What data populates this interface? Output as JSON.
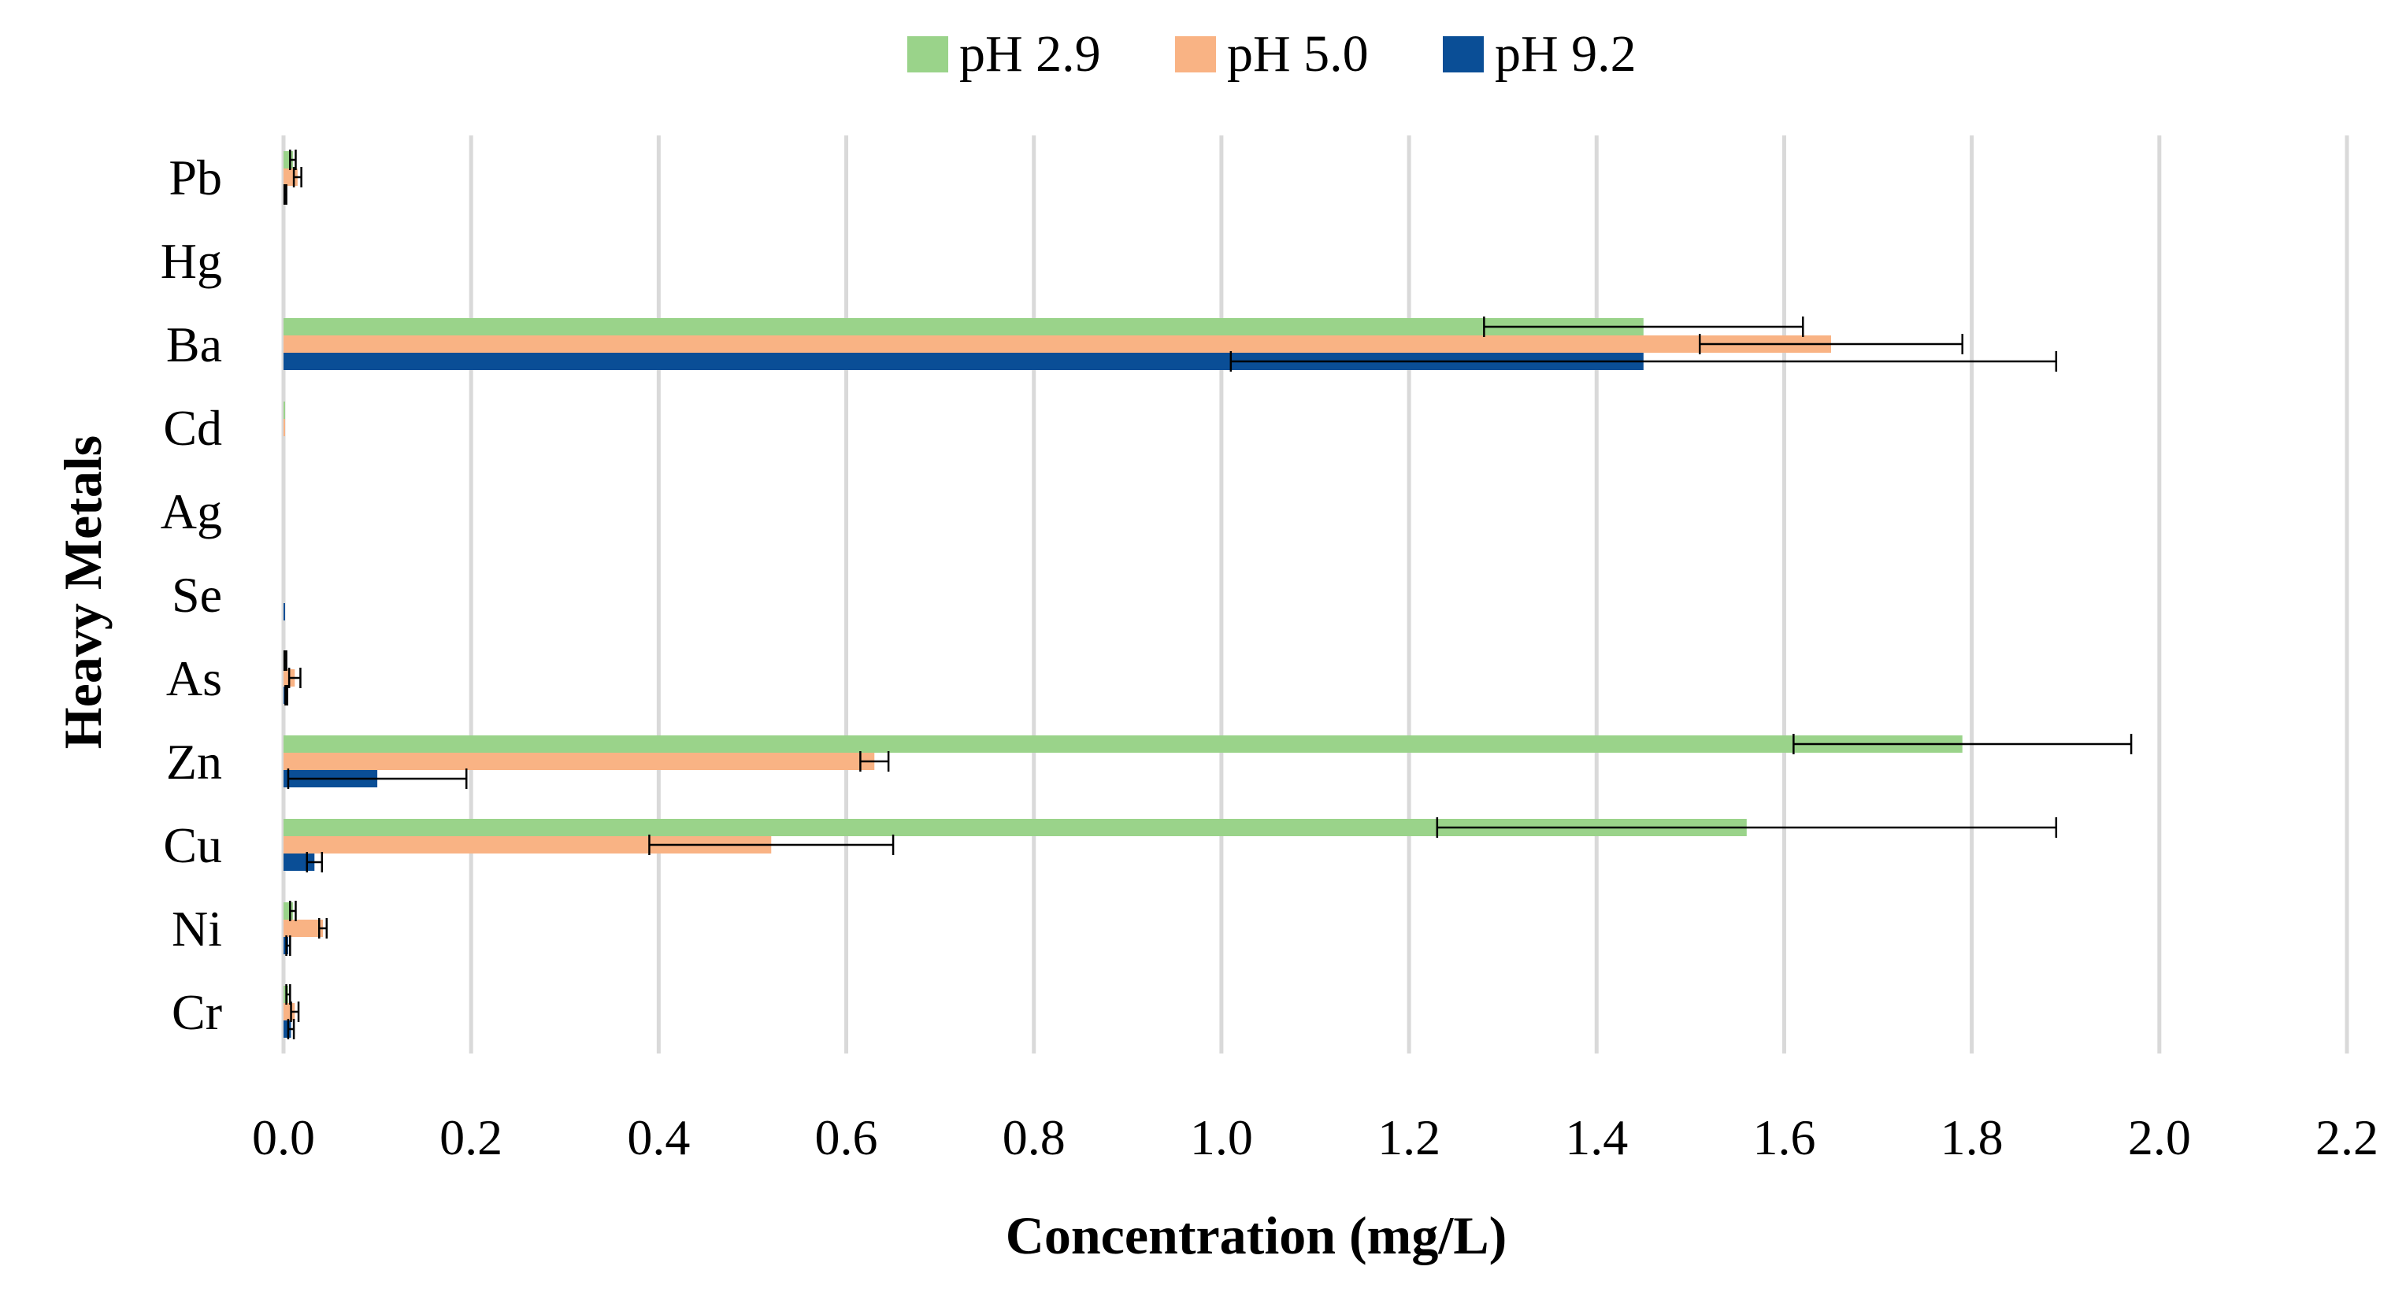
{
  "chart_data": {
    "type": "bar",
    "orientation": "horizontal",
    "xlabel": "Concentration (mg/L)",
    "ylabel": "Heavy Metals",
    "xlim": [
      0,
      2.2
    ],
    "xticks": [
      "0.0",
      "0.2",
      "0.4",
      "0.6",
      "0.8",
      "1.0",
      "1.2",
      "1.4",
      "1.6",
      "1.8",
      "2.0",
      "2.2"
    ],
    "grid": "vertical",
    "legend_position": "top-center",
    "categories": [
      "Pb",
      "Hg",
      "Ba",
      "Cd",
      "Ag",
      "Se",
      "As",
      "Zn",
      "Cu",
      "Ni",
      "Cr"
    ],
    "series": [
      {
        "name": "pH 2.9",
        "color": "#9ad38a",
        "values": [
          0.01,
          0,
          1.45,
          0.001,
          0,
          0,
          0.002,
          1.79,
          1.56,
          0.01,
          0.005
        ],
        "errors": [
          0.003,
          0,
          0.17,
          0,
          0,
          0,
          0.001,
          0.18,
          0.33,
          0.003,
          0.002
        ]
      },
      {
        "name": "pH 5.0",
        "color": "#f9b384",
        "values": [
          0.015,
          0,
          1.65,
          0.001,
          0,
          0,
          0.012,
          0.63,
          0.52,
          0.042,
          0.012
        ],
        "errors": [
          0.004,
          0,
          0.14,
          0,
          0,
          0,
          0.006,
          0.015,
          0.13,
          0.004,
          0.004
        ]
      },
      {
        "name": "pH 9.2",
        "color": "#0a4e96",
        "values": [
          0.002,
          0,
          1.45,
          0,
          0,
          0.001,
          0.003,
          0.1,
          0.033,
          0.005,
          0.008
        ],
        "errors": [
          0.001,
          0,
          0.44,
          0,
          0,
          0,
          0.001,
          0.095,
          0.008,
          0.002,
          0.003
        ]
      }
    ]
  }
}
